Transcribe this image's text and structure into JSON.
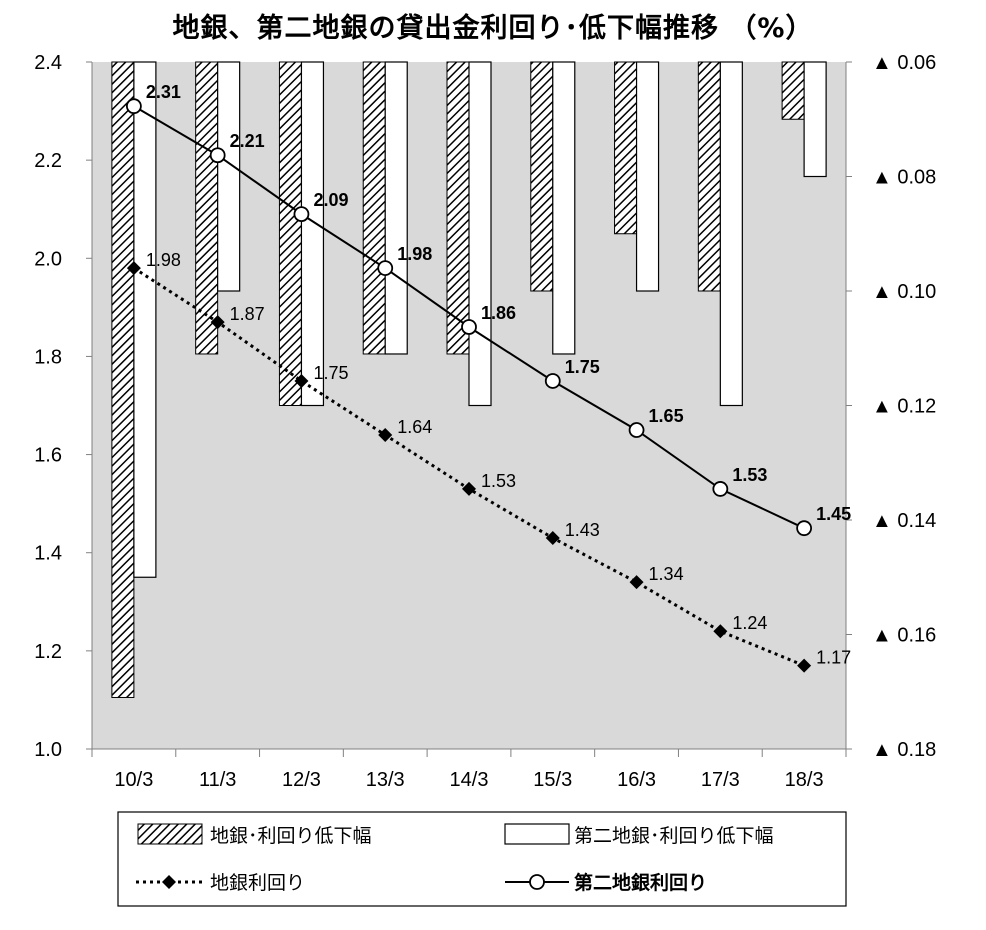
{
  "chart_data": {
    "type": "bar",
    "title": "地銀、第二地銀の貸出金利回り･低下幅推移 （%）",
    "categories": [
      "10/3",
      "11/3",
      "12/3",
      "13/3",
      "14/3",
      "15/3",
      "16/3",
      "17/3",
      "18/3"
    ],
    "ylim": [
      1.0,
      2.4
    ],
    "yticks": [
      "1.0",
      "1.2",
      "1.4",
      "1.6",
      "1.8",
      "2.0",
      "2.2",
      "2.4"
    ],
    "y2lim": [
      0.06,
      0.18
    ],
    "y2_inverted": true,
    "y2ticks": [
      "▲ 0.06",
      "▲ 0.08",
      "▲ 0.10",
      "▲ 0.12",
      "▲ 0.14",
      "▲ 0.16",
      "▲ 0.18"
    ],
    "grid": false,
    "legend_position": "bottom",
    "series": [
      {
        "name": "地銀･利回り低下幅",
        "type": "bar",
        "axis": "right",
        "fill": "hatch",
        "values": [
          0.171,
          0.111,
          0.12,
          0.111,
          0.111,
          0.1,
          0.09,
          0.1,
          0.07
        ]
      },
      {
        "name": "第二地銀･利回り低下幅",
        "type": "bar",
        "axis": "right",
        "fill": "white",
        "values": [
          0.15,
          0.1,
          0.12,
          0.111,
          0.12,
          0.111,
          0.1,
          0.12,
          0.08
        ]
      },
      {
        "name": "地銀利回り",
        "type": "line",
        "axis": "left",
        "style": "dotted",
        "marker": "diamond",
        "values": [
          1.98,
          1.87,
          1.75,
          1.64,
          1.53,
          1.43,
          1.34,
          1.24,
          1.17
        ],
        "labels": [
          "1.98",
          "1.87",
          "1.75",
          "1.64",
          "1.53",
          "1.43",
          "1.34",
          "1.24",
          "1.17"
        ]
      },
      {
        "name": "第二地銀利回り",
        "type": "line",
        "axis": "left",
        "style": "solid",
        "marker": "open-circle",
        "values": [
          2.31,
          2.21,
          2.09,
          1.98,
          1.86,
          1.75,
          1.65,
          1.53,
          1.45
        ],
        "labels": [
          "2.31",
          "2.21",
          "2.09",
          "1.98",
          "1.86",
          "1.75",
          "1.65",
          "1.53",
          "1.45"
        ]
      }
    ]
  },
  "colors": {
    "plot_background": "#d9d9d9",
    "line": "#000000",
    "bar_outline": "#000000",
    "open_marker_fill": "#ffffff"
  }
}
